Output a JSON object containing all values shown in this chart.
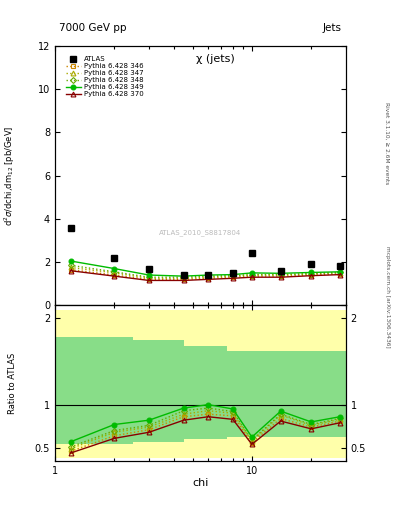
{
  "title_left": "7000 GeV pp",
  "title_right": "Jets",
  "plot_title": "χ (jets)",
  "ylabel_main": "d$^2\\sigma$/dchi,dm$_{12}$ [pb/GeV]",
  "ylabel_ratio": "Ratio to ATLAS",
  "xlabel": "chi",
  "watermark": "ATLAS_2010_S8817804",
  "right_label_top": "Rivet 3.1.10, ≥ 2.6M events",
  "right_label_bottom": "mcplots.cern.ch [arXiv:1306.3436]",
  "chi_values": [
    1.2,
    2.0,
    3.0,
    4.5,
    6.0,
    8.0,
    10.0,
    14.0,
    20.0,
    28.0
  ],
  "atlas_y": [
    3.6,
    2.2,
    1.7,
    1.4,
    1.4,
    1.5,
    2.4,
    1.6,
    1.9,
    1.8
  ],
  "py346_y": [
    1.65,
    1.4,
    1.2,
    1.2,
    1.25,
    1.3,
    1.35,
    1.35,
    1.4,
    1.45
  ],
  "py347_y": [
    1.75,
    1.5,
    1.25,
    1.25,
    1.3,
    1.35,
    1.4,
    1.4,
    1.45,
    1.5
  ],
  "py348_y": [
    1.85,
    1.55,
    1.3,
    1.3,
    1.35,
    1.38,
    1.42,
    1.42,
    1.47,
    1.52
  ],
  "py349_y": [
    2.05,
    1.7,
    1.4,
    1.35,
    1.4,
    1.42,
    1.5,
    1.48,
    1.52,
    1.55
  ],
  "py370_y": [
    1.6,
    1.35,
    1.15,
    1.15,
    1.2,
    1.25,
    1.3,
    1.3,
    1.37,
    1.42
  ],
  "ratio_346": [
    0.46,
    0.64,
    0.71,
    0.86,
    0.89,
    0.87,
    0.56,
    0.84,
    0.74,
    0.81
  ],
  "ratio_347": [
    0.49,
    0.68,
    0.74,
    0.89,
    0.93,
    0.9,
    0.58,
    0.88,
    0.76,
    0.83
  ],
  "ratio_348": [
    0.51,
    0.7,
    0.76,
    0.93,
    0.96,
    0.92,
    0.59,
    0.89,
    0.77,
    0.84
  ],
  "ratio_349": [
    0.57,
    0.77,
    0.82,
    0.96,
    1.0,
    0.95,
    0.625,
    0.925,
    0.8,
    0.86
  ],
  "ratio_370": [
    0.44,
    0.61,
    0.68,
    0.82,
    0.86,
    0.83,
    0.54,
    0.81,
    0.72,
    0.79
  ],
  "color_346": "#cc8800",
  "color_347": "#aaaa00",
  "color_348": "#66aa00",
  "color_349": "#00bb00",
  "color_370": "#880000",
  "color_atlas": "black",
  "ylim_main": [
    0,
    12
  ],
  "ylim_ratio": [
    0.35,
    2.15
  ],
  "xlim": [
    1.0,
    30.0
  ]
}
